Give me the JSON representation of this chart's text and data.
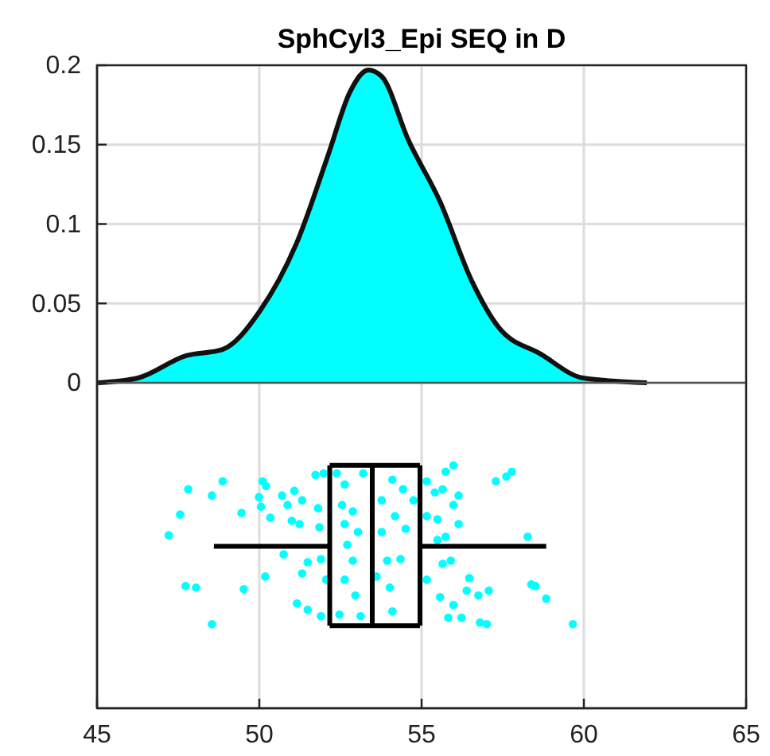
{
  "chart_data": {
    "type": "area",
    "title": "SphCyl3_Epi SEQ in D",
    "xlim": [
      45,
      65
    ],
    "xticks": [
      45,
      50,
      55,
      60,
      65
    ],
    "ylim": [
      -0.205,
      0.2
    ],
    "yticks": [
      0,
      0.05,
      0.1,
      0.15,
      0.2
    ],
    "grid": true,
    "series": [
      {
        "color": "#00ffff",
        "x": [
          45.03,
          46.26,
          47.73,
          48.87,
          50.01,
          51.15,
          52.13,
          52.79,
          53.36,
          53.77,
          54.59,
          55.57,
          56.55,
          57.37,
          58.68,
          59.98,
          61.94
        ],
        "values": [
          0,
          0.003,
          0.017,
          0.021,
          0.045,
          0.088,
          0.144,
          0.183,
          0.197,
          0.193,
          0.153,
          0.114,
          0.064,
          0.035,
          0.018,
          0.003,
          0
        ]
      },
      {
        "type": "line",
        "color": "#000000",
        "x": [
          48.6,
          52.17
        ],
        "values": [
          -0.103,
          -0.103
        ]
      },
      {
        "type": "line",
        "color": "#000000",
        "x": [
          54.95,
          58.84
        ],
        "values": [
          -0.103,
          -0.103
        ]
      },
      {
        "type": "line",
        "color": "#000000",
        "x": [
          52.17,
          54.95
        ],
        "values": [
          -0.052,
          -0.052
        ]
      },
      {
        "type": "line",
        "color": "#000000",
        "x": [
          52.17,
          54.95
        ],
        "values": [
          -0.153,
          -0.153
        ]
      },
      {
        "type": "line",
        "color": "#000000",
        "x": [
          52.17,
          52.17
        ],
        "values": [
          -0.052,
          -0.153
        ]
      },
      {
        "type": "line",
        "color": "#000000",
        "x": [
          54.95,
          54.95
        ],
        "values": [
          -0.052,
          -0.153
        ]
      },
      {
        "type": "line",
        "color": "#000000",
        "x": [
          53.48,
          53.48
        ],
        "values": [
          -0.052,
          -0.153
        ]
      },
      {
        "type": "scatter",
        "color": "#00ffff",
        "marker": "circle",
        "x": [
          48.87,
          47.81,
          48.54,
          47.56,
          47.21,
          49.45,
          47.73,
          48.05,
          49.52,
          48.54,
          50.1,
          50.21,
          49.99,
          50.05,
          50.34,
          50.7,
          51.08,
          50.87,
          51.32,
          51.0,
          51.24,
          50.75,
          50.18,
          51.49,
          51.32,
          51.85,
          51.81,
          51.73,
          51.98,
          51.9,
          51.16,
          51.49,
          51.9,
          52.06,
          52.63,
          52.55,
          52.88,
          52.63,
          53.04,
          52.71,
          52.88,
          52.63,
          52.96,
          52.47,
          53.12,
          53.2,
          52.39,
          54.1,
          54.43,
          53.77,
          54.18,
          54.51,
          53.77,
          53.94,
          54.35,
          53.61,
          54.02,
          54.1,
          54.75,
          55.16,
          55.74,
          55.98,
          55.41,
          55.65,
          56.14,
          55.98,
          55.49,
          55.16,
          56.14,
          55.74,
          55.49,
          55.9,
          55.65,
          55.16,
          56.47,
          56.39,
          55.57,
          56.75,
          57.07,
          55.98,
          55.82,
          56.23,
          56.8,
          57.01,
          57.29,
          57.61,
          57.78,
          58.27,
          58.38,
          58.51,
          58.84,
          59.66
        ],
        "values": [
          -0.062,
          -0.067,
          -0.071,
          -0.083,
          -0.096,
          -0.082,
          -0.128,
          -0.129,
          -0.13,
          -0.152,
          -0.062,
          -0.065,
          -0.072,
          -0.078,
          -0.085,
          -0.071,
          -0.068,
          -0.077,
          -0.074,
          -0.087,
          -0.089,
          -0.108,
          -0.122,
          -0.113,
          -0.12,
          -0.091,
          -0.079,
          -0.058,
          -0.057,
          -0.111,
          -0.139,
          -0.143,
          -0.147,
          -0.124,
          -0.064,
          -0.077,
          -0.081,
          -0.089,
          -0.094,
          -0.102,
          -0.112,
          -0.124,
          -0.134,
          -0.146,
          -0.147,
          -0.057,
          -0.057,
          -0.061,
          -0.067,
          -0.074,
          -0.084,
          -0.092,
          -0.094,
          -0.112,
          -0.111,
          -0.122,
          -0.129,
          -0.144,
          -0.074,
          -0.062,
          -0.056,
          -0.052,
          -0.069,
          -0.067,
          -0.071,
          -0.077,
          -0.086,
          -0.084,
          -0.089,
          -0.097,
          -0.099,
          -0.112,
          -0.114,
          -0.124,
          -0.123,
          -0.131,
          -0.135,
          -0.134,
          -0.131,
          -0.14,
          -0.148,
          -0.148,
          -0.151,
          -0.152,
          -0.062,
          -0.059,
          -0.056,
          -0.097,
          -0.127,
          -0.128,
          -0.136,
          -0.152
        ]
      }
    ]
  }
}
